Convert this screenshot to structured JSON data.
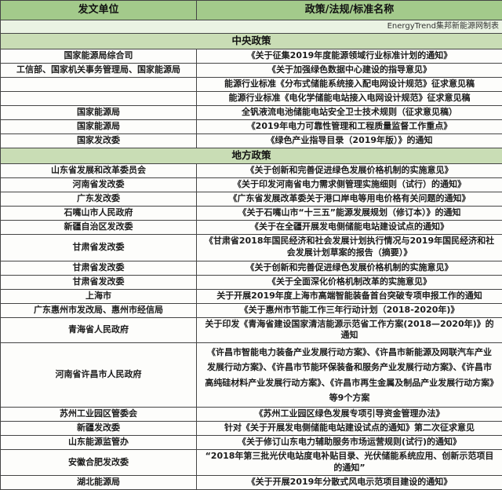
{
  "colors": {
    "header_bg": "#a3ca8b",
    "section_bg": "#c9ddb5",
    "credit_bg": "#eaf3e3",
    "border": "#454545",
    "cell_bg": "#fdfdfb"
  },
  "table": {
    "header": {
      "unit_col": "发文单位",
      "policy_col": "政策/法规/标准名称"
    },
    "credit": "EnergyTrend集邦新能源网制表",
    "sections": [
      {
        "title": "中央政策",
        "rows": [
          {
            "unit": "国家能源局综合司",
            "policy": "《关于征集2019年度能源领域行业标准计划的通知》"
          },
          {
            "unit": "工信部、国家机关事务管理局、国家能源局",
            "policy": "《关于加强绿色数据中心建设的指导意见》"
          },
          {
            "unit": "",
            "policy": "能源行业标准《分布式储能系统接入配电网设计规范》征求意见稿"
          },
          {
            "unit": "",
            "policy": "能源行业标准《电化学储能电站接入电网设计规范》征求意见稿"
          },
          {
            "unit": "国家能源局",
            "policy": "全钒液流电池储能电站安全卫士技术规则（征求意见稿）"
          },
          {
            "unit": "国家能源局",
            "policy": "《2019年电力可靠性管理和工程质量监督工作重点》"
          },
          {
            "unit": "国家发改委",
            "policy": "《绿色产业指导目录（2019年版）》的通知"
          }
        ]
      },
      {
        "title": "地方政策",
        "rows": [
          {
            "unit": "山东省发展和改革委员会",
            "policy": "《关于创新和完善促进绿色发展价格机制的实施意见》"
          },
          {
            "unit": "河南省发改委",
            "policy": "《关于印发河南省电力需求侧管理实施细则（试行）的通知》"
          },
          {
            "unit": "广东发改委",
            "policy": "《广东省发展改革委关于港口岸电等用电价格有关问题的通知》"
          },
          {
            "unit": "石嘴山市人民政府",
            "policy": "《关于石嘴山市“十三五”能源发展规划（修订本）》的通知"
          },
          {
            "unit": "新疆自治区发改委",
            "policy": "《关于在全疆开展发电侧储能电站建设试点的通知》"
          },
          {
            "unit": "甘肃省发改委",
            "policy": "《甘肃省2018年国民经济和社会发展计划执行情况与2019年国民经济和社会发展计划草案的报告（摘要）》"
          },
          {
            "unit": "甘肃省发改委",
            "policy": "《关于创新和完善促进绿色发展价格机制的实施意见》"
          },
          {
            "unit": "甘肃省发改委",
            "policy": "《关于全面深化价格机制改革的实施意见》"
          },
          {
            "unit": "上海市",
            "policy": "关于开展2019年度上海市高端智能装备首台突破专项申报工作的通知"
          },
          {
            "unit": "广东惠州市发改局、惠州市经信局",
            "policy": "《关于惠州市节能工作三年行动计划（2018-2020年)》"
          },
          {
            "unit": "青海省人民政府",
            "policy": "关于印发《青海省建设国家清洁能源示范省工作方案(2018—2020年)》的通知"
          },
          {
            "unit": "河南省许昌市人民政府",
            "policy": "《许昌市智能电力装备产业发展行动方案》、《许昌市新能源及网联汽车产业发展行动方案》、《许昌市节能环保装备和服务产业发展行动方案》、《许昌市高纯硅材料产业发展行动方案》、《许昌市再生金属及制品产业发展行动方案》等9个方案"
          },
          {
            "unit": "苏州工业园区管委会",
            "policy": "《苏州工业园区绿色发展专项引导资金管理办法》"
          },
          {
            "unit": "新疆发改委",
            "policy": "针对《关于开展发电侧储能电站建设试点的通知》第二次征求意见"
          },
          {
            "unit": "山东能源监管办",
            "policy": "《关于修订山东电力辅助服务市场运营规则(试行)的通知》"
          },
          {
            "unit": "安徽合肥发改委",
            "policy": "“2018年第三批光伏电站度电补贴目录、光伏储能系统应用、创新示范项目的通知”"
          },
          {
            "unit": "湖北能源局",
            "policy": "《关于开展2019年分散式风电示范项目建设的通知》"
          }
        ]
      }
    ]
  }
}
